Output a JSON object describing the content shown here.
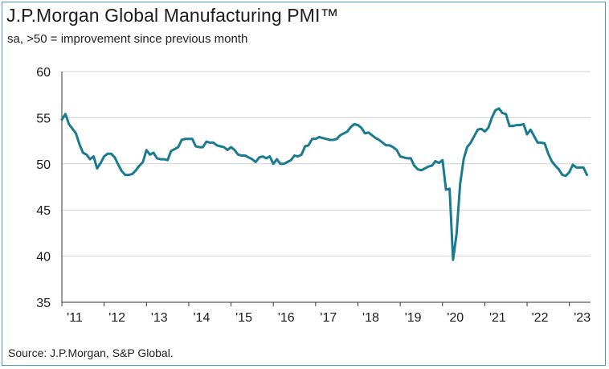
{
  "header": {
    "title": "J.P.Morgan Global Manufacturing PMI™",
    "subtitle": "sa, >50 = improvement since previous month"
  },
  "footer": {
    "source": "Source: J.P.Morgan, S&P Global."
  },
  "chart_data": {
    "type": "line",
    "title": "J.P.Morgan Global Manufacturing PMI™",
    "subtitle": "sa, >50 = improvement since previous month",
    "xlabel": "",
    "ylabel": "",
    "ylim": [
      35,
      60
    ],
    "yticks": [
      35,
      40,
      45,
      50,
      55,
      60
    ],
    "xlim": [
      2011.0,
      2023.5
    ],
    "xticks": [
      {
        "value": 2011,
        "label": "'11"
      },
      {
        "value": 2012,
        "label": "'12"
      },
      {
        "value": 2013,
        "label": "'13"
      },
      {
        "value": 2014,
        "label": "'14"
      },
      {
        "value": 2015,
        "label": "'15"
      },
      {
        "value": 2016,
        "label": "'16"
      },
      {
        "value": 2017,
        "label": "'17"
      },
      {
        "value": 2018,
        "label": "'18"
      },
      {
        "value": 2019,
        "label": "'19"
      },
      {
        "value": 2020,
        "label": "'20"
      },
      {
        "value": 2021,
        "label": "'21"
      },
      {
        "value": 2022,
        "label": "'22"
      },
      {
        "value": 2023,
        "label": "'23"
      }
    ],
    "grid": "horizontal",
    "colors": {
      "line": "#1a7a90",
      "grid": "#d0d0d0",
      "axis": "#333333",
      "frame": "#4f98cf"
    },
    "series": [
      {
        "name": "Global Manufacturing PMI",
        "x": [
          2011.0,
          2011.083,
          2011.167,
          2011.25,
          2011.333,
          2011.417,
          2011.5,
          2011.583,
          2011.667,
          2011.75,
          2011.833,
          2011.917,
          2012.0,
          2012.083,
          2012.167,
          2012.25,
          2012.333,
          2012.417,
          2012.5,
          2012.583,
          2012.667,
          2012.75,
          2012.833,
          2012.917,
          2013.0,
          2013.083,
          2013.167,
          2013.25,
          2013.333,
          2013.417,
          2013.5,
          2013.583,
          2013.667,
          2013.75,
          2013.833,
          2013.917,
          2014.0,
          2014.083,
          2014.167,
          2014.25,
          2014.333,
          2014.417,
          2014.5,
          2014.583,
          2014.667,
          2014.75,
          2014.833,
          2014.917,
          2015.0,
          2015.083,
          2015.167,
          2015.25,
          2015.333,
          2015.417,
          2015.5,
          2015.583,
          2015.667,
          2015.75,
          2015.833,
          2015.917,
          2016.0,
          2016.083,
          2016.167,
          2016.25,
          2016.333,
          2016.417,
          2016.5,
          2016.583,
          2016.667,
          2016.75,
          2016.833,
          2016.917,
          2017.0,
          2017.083,
          2017.167,
          2017.25,
          2017.333,
          2017.417,
          2017.5,
          2017.583,
          2017.667,
          2017.75,
          2017.833,
          2017.917,
          2018.0,
          2018.083,
          2018.167,
          2018.25,
          2018.333,
          2018.417,
          2018.5,
          2018.583,
          2018.667,
          2018.75,
          2018.833,
          2018.917,
          2019.0,
          2019.083,
          2019.167,
          2019.25,
          2019.333,
          2019.417,
          2019.5,
          2019.583,
          2019.667,
          2019.75,
          2019.833,
          2019.917,
          2020.0,
          2020.083,
          2020.167,
          2020.25,
          2020.333,
          2020.417,
          2020.5,
          2020.583,
          2020.667,
          2020.75,
          2020.833,
          2020.917,
          2021.0,
          2021.083,
          2021.167,
          2021.25,
          2021.333,
          2021.417,
          2021.5,
          2021.583,
          2021.667,
          2021.75,
          2021.833,
          2021.917,
          2022.0,
          2022.083,
          2022.167,
          2022.25,
          2022.333,
          2022.417,
          2022.5,
          2022.583,
          2022.667,
          2022.75,
          2022.833,
          2022.917,
          2023.0,
          2023.083,
          2023.167,
          2023.25,
          2023.333,
          2023.417
        ],
        "values": [
          54.8,
          55.4,
          54.3,
          53.8,
          53.3,
          52.1,
          51.2,
          51.0,
          50.5,
          50.8,
          49.5,
          50.1,
          50.8,
          51.1,
          51.1,
          50.7,
          49.9,
          49.2,
          48.8,
          48.8,
          48.9,
          49.3,
          49.8,
          50.2,
          51.5,
          51.0,
          51.2,
          50.6,
          50.5,
          50.5,
          50.4,
          51.4,
          51.6,
          51.8,
          52.6,
          52.7,
          52.7,
          52.7,
          51.9,
          51.8,
          51.8,
          52.4,
          52.3,
          52.3,
          52.0,
          51.9,
          51.8,
          51.5,
          51.8,
          51.5,
          51.0,
          50.9,
          50.9,
          50.7,
          50.5,
          50.2,
          50.7,
          50.8,
          50.6,
          50.8,
          50.0,
          50.5,
          50.0,
          50.0,
          50.2,
          50.4,
          50.9,
          50.8,
          51.0,
          51.9,
          52.0,
          52.7,
          52.7,
          52.9,
          52.8,
          52.7,
          52.6,
          52.6,
          52.7,
          53.1,
          53.3,
          53.5,
          54.0,
          54.3,
          54.2,
          53.9,
          53.3,
          53.4,
          53.1,
          52.8,
          52.6,
          52.3,
          52.0,
          52.0,
          51.8,
          51.5,
          50.8,
          50.7,
          50.6,
          50.6,
          49.8,
          49.4,
          49.3,
          49.5,
          49.7,
          49.8,
          50.3,
          50.1,
          50.4,
          47.2,
          47.3,
          39.6,
          42.4,
          47.8,
          50.5,
          51.8,
          52.3,
          53.0,
          53.7,
          53.8,
          53.5,
          53.9,
          55.0,
          55.8,
          56.0,
          55.5,
          55.4,
          54.1,
          54.1,
          54.2,
          54.2,
          54.3,
          53.2,
          53.7,
          53.0,
          52.3,
          52.3,
          52.2,
          51.1,
          50.3,
          49.8,
          49.4,
          48.8,
          48.7,
          49.1,
          49.9,
          49.6,
          49.6,
          49.6,
          48.8
        ]
      }
    ]
  }
}
